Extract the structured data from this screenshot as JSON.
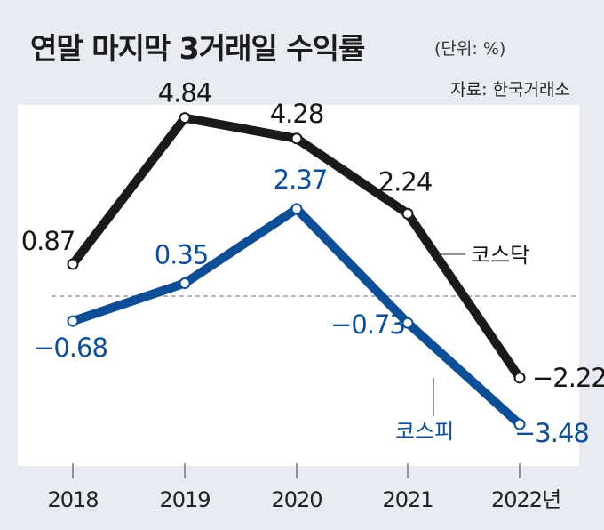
{
  "title": "연말 마지막 3거래일 수익률",
  "unit": "(단위: %)",
  "source": "자료: 한국거래소",
  "colors": {
    "background": "#e9ebf2",
    "plot_fill": "#ffffff",
    "kosdaq": "#1a1a1a",
    "kospi": "#0e4e96",
    "zero_line": "#888888"
  },
  "chart_data": {
    "type": "line",
    "x": [
      "2018",
      "2019",
      "2020",
      "2021",
      "2022년"
    ],
    "series": [
      {
        "name": "코스닥",
        "values": [
          0.87,
          4.84,
          4.28,
          2.24,
          -2.22
        ],
        "labels": [
          "0.87",
          "4.84",
          "4.28",
          "2.24",
          "−2.22"
        ]
      },
      {
        "name": "코스피",
        "values": [
          -0.68,
          0.35,
          2.37,
          -0.73,
          -3.48
        ],
        "labels": [
          "−0.68",
          "0.35",
          "2.37",
          "−0.73",
          "−3.48"
        ]
      }
    ],
    "ylim": [
      -3.6,
      5.5
    ],
    "grid": false,
    "zero_line": true
  }
}
